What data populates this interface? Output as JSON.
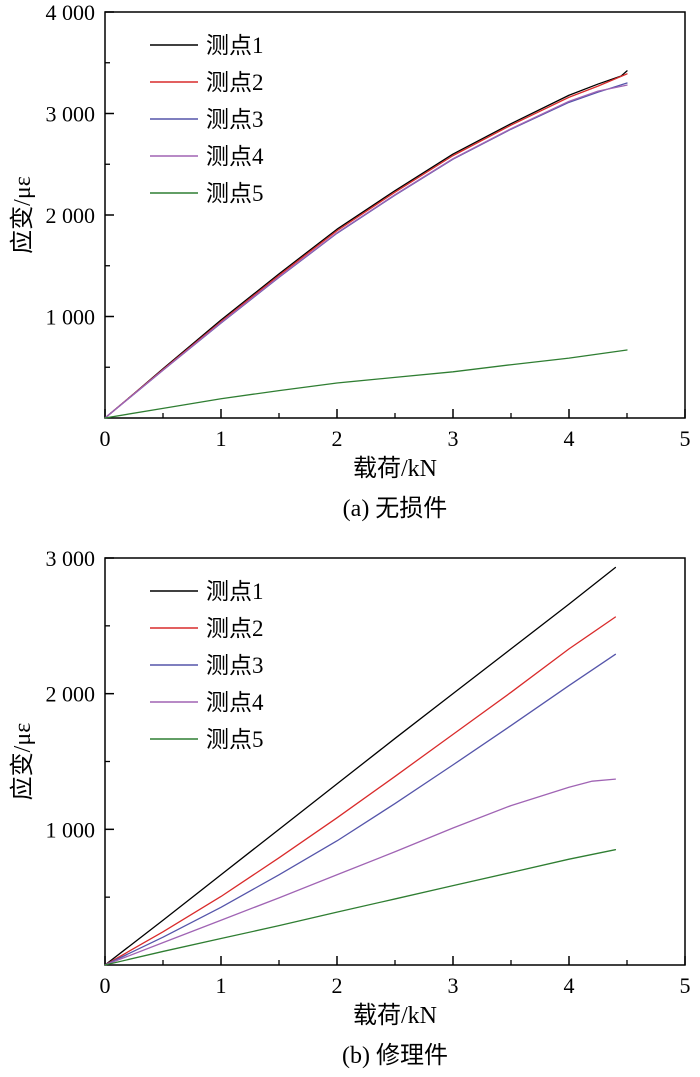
{
  "figure": {
    "background": "#ffffff",
    "axis_color": "#000000"
  },
  "chart_data": [
    {
      "type": "line",
      "subtitle": "(a) 无损件",
      "xlabel": "载荷/kN",
      "ylabel": "应变/με",
      "xlim": [
        0,
        5
      ],
      "ylim": [
        0,
        4000
      ],
      "xticks": [
        0,
        1,
        2,
        3,
        4,
        5
      ],
      "xtick_labels": [
        "0",
        "1",
        "2",
        "3",
        "4",
        "5"
      ],
      "yticks": [
        1000,
        2000,
        3000,
        4000
      ],
      "ytick_labels": [
        "1 000",
        "2 000",
        "3 000",
        "4 000"
      ],
      "x_minor_step": 0.5,
      "y_minor_step": 500,
      "grid": false,
      "legend_position": "top-left",
      "series": [
        {
          "name": "测点1",
          "color": "#000000",
          "points": [
            [
              0,
              0
            ],
            [
              0.25,
              240
            ],
            [
              0.5,
              485
            ],
            [
              0.75,
              725
            ],
            [
              1,
              965
            ],
            [
              1.5,
              1420
            ],
            [
              2,
              1860
            ],
            [
              2.5,
              2240
            ],
            [
              3,
              2600
            ],
            [
              3.5,
              2900
            ],
            [
              4,
              3180
            ],
            [
              4.25,
              3290
            ],
            [
              4.45,
              3370
            ],
            [
              4.5,
              3420
            ]
          ]
        },
        {
          "name": "测点2",
          "color": "#d92b2b",
          "points": [
            [
              0,
              0
            ],
            [
              0.5,
              478
            ],
            [
              1,
              950
            ],
            [
              1.5,
              1405
            ],
            [
              2,
              1845
            ],
            [
              2.5,
              2225
            ],
            [
              3,
              2585
            ],
            [
              3.5,
              2885
            ],
            [
              4,
              3160
            ],
            [
              4.25,
              3270
            ],
            [
              4.5,
              3390
            ]
          ]
        },
        {
          "name": "测点3",
          "color": "#5555aa",
          "points": [
            [
              0,
              0
            ],
            [
              0.5,
              470
            ],
            [
              1,
              935
            ],
            [
              1.5,
              1385
            ],
            [
              2,
              1820
            ],
            [
              2.5,
              2195
            ],
            [
              3,
              2550
            ],
            [
              3.5,
              2845
            ],
            [
              4,
              3110
            ],
            [
              4.25,
              3210
            ],
            [
              4.5,
              3300
            ]
          ]
        },
        {
          "name": "测点4",
          "color": "#a064b4",
          "points": [
            [
              0,
              0
            ],
            [
              0.5,
              472
            ],
            [
              1,
              940
            ],
            [
              1.5,
              1390
            ],
            [
              2,
              1825
            ],
            [
              2.5,
              2200
            ],
            [
              3,
              2555
            ],
            [
              3.5,
              2850
            ],
            [
              4,
              3120
            ],
            [
              4.25,
              3220
            ],
            [
              4.5,
              3280
            ]
          ]
        },
        {
          "name": "测点5",
          "color": "#2f7e32",
          "points": [
            [
              0,
              0
            ],
            [
              0.5,
              95
            ],
            [
              1,
              190
            ],
            [
              1.5,
              270
            ],
            [
              2,
              345
            ],
            [
              2.5,
              400
            ],
            [
              3,
              455
            ],
            [
              3.5,
              525
            ],
            [
              4,
              590
            ],
            [
              4.5,
              670
            ]
          ]
        }
      ]
    },
    {
      "type": "line",
      "subtitle": "(b) 修理件",
      "xlabel": "载荷/kN",
      "ylabel": "应变/με",
      "xlim": [
        0,
        5
      ],
      "ylim": [
        0,
        3000
      ],
      "xticks": [
        0,
        1,
        2,
        3,
        4,
        5
      ],
      "xtick_labels": [
        "0",
        "1",
        "2",
        "3",
        "4",
        "5"
      ],
      "yticks": [
        1000,
        2000,
        3000
      ],
      "ytick_labels": [
        "1 000",
        "2 000",
        "3 000"
      ],
      "x_minor_step": 0.5,
      "y_minor_step": 500,
      "grid": false,
      "legend_position": "top-left",
      "series": [
        {
          "name": "测点1",
          "color": "#000000",
          "points": [
            [
              0,
              0
            ],
            [
              0.5,
              330
            ],
            [
              1,
              665
            ],
            [
              1.5,
              1000
            ],
            [
              2,
              1335
            ],
            [
              2.5,
              1670
            ],
            [
              3,
              2000
            ],
            [
              3.5,
              2330
            ],
            [
              4,
              2660
            ],
            [
              4.4,
              2930
            ]
          ]
        },
        {
          "name": "测点2",
          "color": "#d92b2b",
          "points": [
            [
              0,
              0
            ],
            [
              0.5,
              245
            ],
            [
              1,
              505
            ],
            [
              1.5,
              790
            ],
            [
              2,
              1085
            ],
            [
              2.5,
              1390
            ],
            [
              3,
              1700
            ],
            [
              3.5,
              2010
            ],
            [
              4,
              2330
            ],
            [
              4.4,
              2565
            ]
          ]
        },
        {
          "name": "测点3",
          "color": "#5555aa",
          "points": [
            [
              0,
              0
            ],
            [
              0.5,
              205
            ],
            [
              1,
              425
            ],
            [
              1.5,
              665
            ],
            [
              2,
              915
            ],
            [
              2.5,
              1190
            ],
            [
              3,
              1475
            ],
            [
              3.5,
              1765
            ],
            [
              4,
              2060
            ],
            [
              4.4,
              2290
            ]
          ]
        },
        {
          "name": "测点4",
          "color": "#a064b4",
          "points": [
            [
              0,
              0
            ],
            [
              0.5,
              165
            ],
            [
              1,
              330
            ],
            [
              1.5,
              495
            ],
            [
              2,
              665
            ],
            [
              2.5,
              835
            ],
            [
              3,
              1010
            ],
            [
              3.5,
              1175
            ],
            [
              4,
              1310
            ],
            [
              4.2,
              1355
            ],
            [
              4.4,
              1370
            ]
          ]
        },
        {
          "name": "测点5",
          "color": "#2f7e32",
          "points": [
            [
              0,
              0
            ],
            [
              0.5,
              100
            ],
            [
              1,
              195
            ],
            [
              1.5,
              290
            ],
            [
              2,
              390
            ],
            [
              2.5,
              487
            ],
            [
              3,
              585
            ],
            [
              3.5,
              682
            ],
            [
              4,
              780
            ],
            [
              4.4,
              850
            ]
          ]
        }
      ]
    }
  ]
}
